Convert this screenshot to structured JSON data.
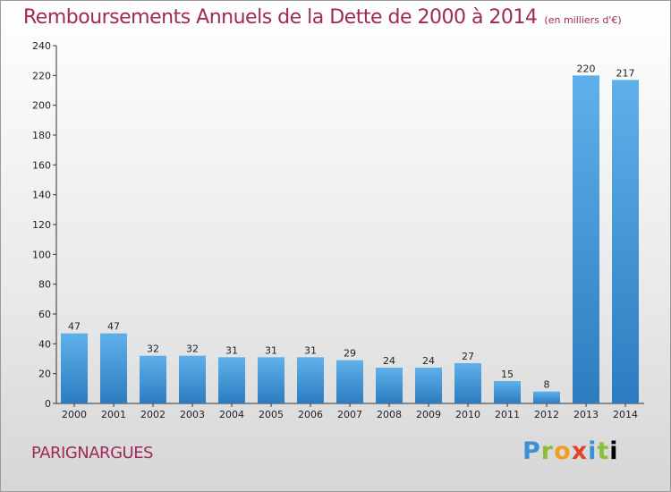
{
  "header": {
    "title": "Remboursements Annuels de la Dette de 2000 à 2014",
    "subtitle": "(en milliers d'€)"
  },
  "footer": {
    "commune": "PARIGNARGUES",
    "logo_text": "Proxiti"
  },
  "colors": {
    "title": "#a0295a",
    "bar_top": "#5fb0ea",
    "bar_bottom": "#2c7cc0"
  },
  "chart_data": {
    "type": "bar",
    "title": "Remboursements Annuels de la Dette de 2000 à 2014",
    "categories": [
      "2000",
      "2001",
      "2002",
      "2003",
      "2004",
      "2005",
      "2006",
      "2007",
      "2008",
      "2009",
      "2010",
      "2011",
      "2012",
      "2013",
      "2014"
    ],
    "values": [
      47,
      47,
      32,
      32,
      31,
      31,
      31,
      29,
      24,
      24,
      27,
      15,
      8,
      220,
      217
    ],
    "ylim": [
      0,
      240
    ],
    "yticks": [
      0,
      20,
      40,
      60,
      80,
      100,
      120,
      140,
      160,
      180,
      200,
      220,
      240
    ],
    "grid": false,
    "xlabel": "",
    "ylabel": ""
  }
}
